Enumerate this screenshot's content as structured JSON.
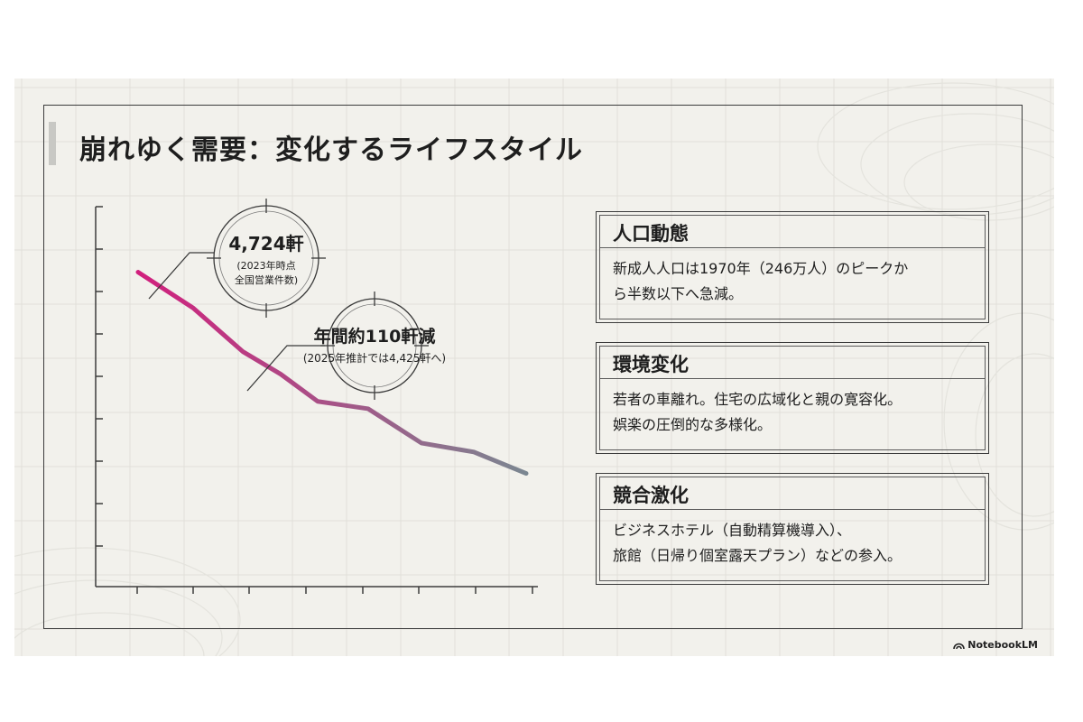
{
  "title": "崩れゆく需要：変化するライフスタイル",
  "chart_data": {
    "type": "line",
    "x": [
      1,
      2,
      3,
      4,
      5,
      6,
      7,
      8,
      9
    ],
    "values": [
      4724,
      4632,
      4520,
      4462,
      4392,
      4373,
      4285,
      4262,
      4207
    ],
    "ylim": [
      3900,
      4920
    ],
    "gradient": [
      "#d11f7d",
      "#7b8791"
    ],
    "annotations": [
      {
        "point_index": 0,
        "value": "4,724軒",
        "note_lines": [
          "(2023年時点",
          "全国営業件数)"
        ]
      },
      {
        "point_index": 2,
        "value": "年間約110軒減",
        "note_lines": [
          "(2025年推計では4,425軒へ)"
        ]
      }
    ]
  },
  "panels": [
    {
      "title": "人口動態",
      "lines": [
        "新成人人口は1970年（246万人）のピークか",
        "ら半数以下へ急減。"
      ]
    },
    {
      "title": "環境変化",
      "lines": [
        "若者の車離れ。住宅の広域化と親の寛容化。",
        "娯楽の圧倒的な多様化。"
      ]
    },
    {
      "title": "競合激化",
      "lines": [
        "ビジネスホテル（自動精算機導入）、",
        "旅館（日帰り個室露天プラン）などの参入。"
      ]
    }
  ],
  "logo": "NotebookLM"
}
